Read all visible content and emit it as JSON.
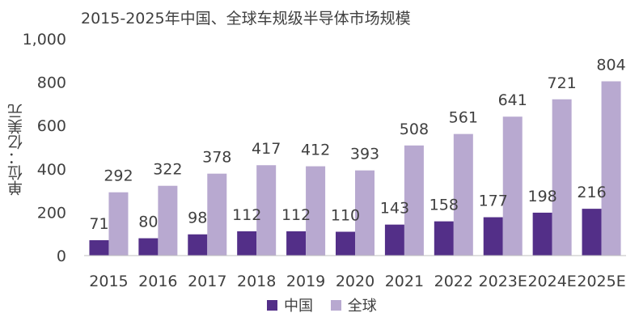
{
  "chart_data": {
    "type": "bar",
    "title": "2015-2025年中国、全球车规级半导体市场规模",
    "ylabel": "单位：亿美元",
    "xlabel": "",
    "categories": [
      "2015",
      "2016",
      "2017",
      "2018",
      "2019",
      "2020",
      "2021",
      "2022",
      "2023E",
      "2024E",
      "2025E"
    ],
    "series": [
      {
        "name": "中国",
        "color": "#532f88",
        "values": [
          71,
          80,
          98,
          112,
          112,
          110,
          143,
          158,
          177,
          198,
          216
        ]
      },
      {
        "name": "全球",
        "color": "#b8a9d0",
        "values": [
          292,
          322,
          378,
          417,
          412,
          393,
          508,
          561,
          641,
          721,
          804
        ]
      }
    ],
    "ylim": [
      0,
      1000
    ],
    "yticks": [
      "0",
      "200",
      "400",
      "600",
      "800",
      "1,000"
    ],
    "ytick_values": [
      0,
      200,
      400,
      600,
      800,
      1000
    ],
    "grid": false,
    "legend_position": "bottom"
  }
}
